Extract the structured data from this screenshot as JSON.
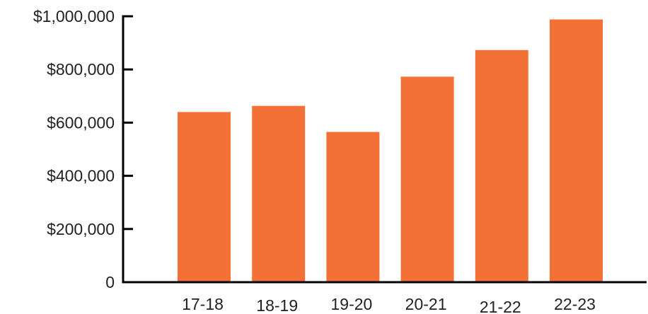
{
  "chart_data": {
    "type": "bar",
    "categories": [
      "17-18",
      "18-19",
      "19-20",
      "20-21",
      "21-22",
      "22-23"
    ],
    "values": [
      640000,
      663000,
      565000,
      773000,
      873000,
      988000
    ],
    "yticks": [
      0,
      200000,
      400000,
      600000,
      800000,
      1000000
    ],
    "ytick_labels": [
      "0",
      "$200,000",
      "$400,000",
      "$600,000",
      "$800,000",
      "$1,000,000"
    ],
    "ylim": [
      0,
      1000000
    ],
    "grid": false,
    "legend": "none",
    "bar_color": "#F37036",
    "axis_color": "#000000",
    "text_color": "#222222"
  }
}
